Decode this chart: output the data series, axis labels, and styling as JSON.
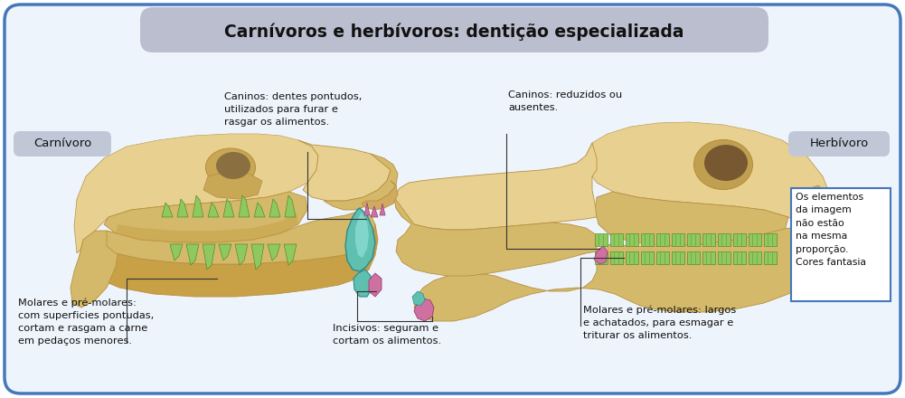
{
  "title": "Carnívoros e herbívoros: dentição especializada",
  "title_bg_color": "#bbbece",
  "title_font_size": 13.5,
  "outer_bg_color": "#ffffff",
  "border_color": "#4477bb",
  "inner_bg_color": "#eef4fc",
  "label_carnivoro": "Carnívoro",
  "label_herbivoro": "Herbívoro",
  "label_bg_color": "#c0c8d8",
  "label_font_size": 9.5,
  "annotation_font_size": 8.2,
  "canino_carnivoro": "Caninos: dentes pontudos,\nutilizados para furar e\nrasgar os alimentos.",
  "canino_herbivoro": "Caninos: reduzidos ou\nausentes.",
  "molares_carnivoro": "Molares e pré-molares:\ncom superficies pontudas,\ncortam e rasgam a carne\nem pedaços menores.",
  "incisivos": "Incisivos: seguram e\ncortam os alimentos.",
  "molares_herbivoro": "Molares e pré-molares: largos\ne achatados, para esmagar e\ntriturar os alimentos.",
  "disclaimer": "Os elementos\nda imagem\nnão estão\nna mesma\nproporção.\nCores fantasia",
  "disclaimer_border": "#4477bb",
  "skull_fill": "#d4b96a",
  "skull_light": "#e8d090",
  "skull_dark": "#b89040",
  "skull_shadow": "#a07830",
  "tooth_green": "#90c860",
  "tooth_pink": "#d070a0",
  "canine_teal": "#60c0b0"
}
